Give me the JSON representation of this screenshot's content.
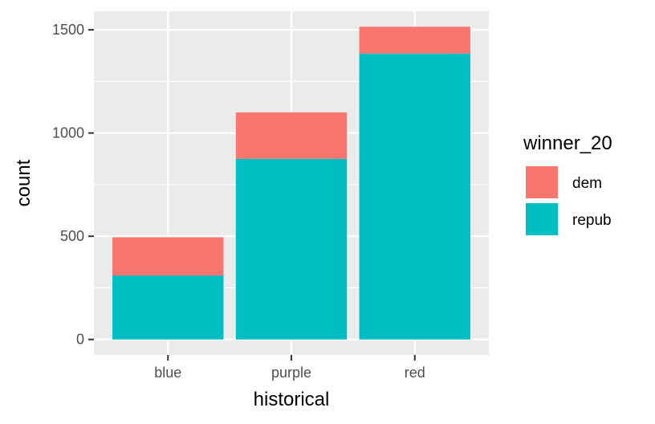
{
  "chart_data": {
    "type": "bar",
    "stacked": true,
    "categories": [
      "blue",
      "purple",
      "red"
    ],
    "series": [
      {
        "name": "dem",
        "values": [
          185,
          225,
          130
        ]
      },
      {
        "name": "repub",
        "values": [
          310,
          875,
          1385
        ]
      }
    ],
    "colors": {
      "dem": "#F8766D",
      "repub": "#00BFC4"
    },
    "xlabel": "historical",
    "ylabel": "count",
    "ylim": [
      -75,
      1590
    ],
    "yticks": [
      0,
      500,
      1000,
      1500
    ],
    "grid": true,
    "panel_background": "#EBEBEB",
    "legend": {
      "title": "winner_20",
      "position": "right"
    }
  }
}
